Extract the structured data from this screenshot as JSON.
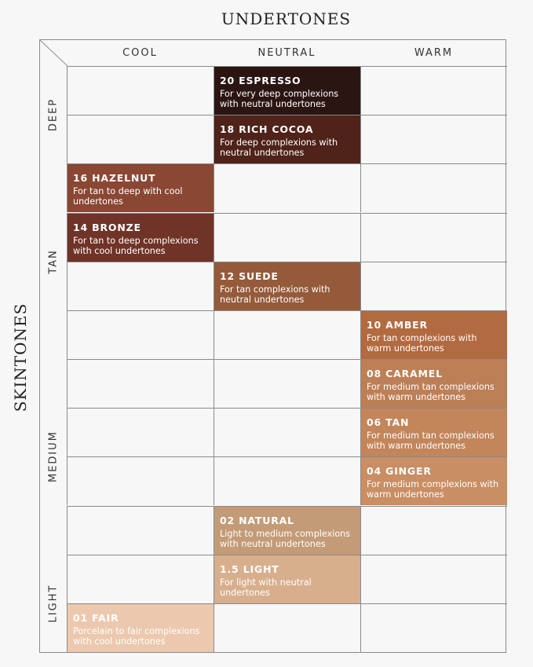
{
  "title": "UNDERTONES",
  "side_title": "SKINTONES",
  "columns": [
    {
      "key": "cool",
      "label": "COOL"
    },
    {
      "key": "neutral",
      "label": "NEUTRAL"
    },
    {
      "key": "warm",
      "label": "WARM"
    }
  ],
  "groups": [
    {
      "label": "DEEP",
      "rows": [
        1,
        2
      ]
    },
    {
      "label": "TAN",
      "rows": [
        3,
        4,
        5,
        6
      ]
    },
    {
      "label": "MEDIUM",
      "rows": [
        7,
        8,
        9,
        10
      ]
    },
    {
      "label": "LIGHT",
      "rows": [
        11,
        12
      ]
    }
  ],
  "rows": [
    {
      "neutral": {
        "name": "20 ESPRESSO",
        "desc": "For very deep complexions with neutral undertones",
        "color": "#2b1512"
      }
    },
    {
      "neutral": {
        "name": "18 RICH COCOA",
        "desc": "For deep complexions with neutral undertones",
        "color": "#4f2319"
      }
    },
    {
      "cool": {
        "name": "16 HAZELNUT",
        "desc": "For tan to deep with cool undertones",
        "color": "#8a4733"
      }
    },
    {
      "cool": {
        "name": "14 BRONZE",
        "desc": "For tan to deep complexions with cool undertones",
        "color": "#6f3327"
      }
    },
    {
      "neutral": {
        "name": "12 SUEDE",
        "desc": "For tan complexions with neutral undertones",
        "color": "#955a3a"
      }
    },
    {
      "warm": {
        "name": "10 AMBER",
        "desc": "For tan complexions with warm undertones",
        "color": "#b26a40"
      }
    },
    {
      "warm": {
        "name": "08 CARAMEL",
        "desc": "For medium tan complexions with warm undertones",
        "color": "#bd7f56"
      }
    },
    {
      "warm": {
        "name": "06 TAN",
        "desc": "For medium tan complexions with warm undertones",
        "color": "#c3855a"
      }
    },
    {
      "warm": {
        "name": "04 GINGER",
        "desc": "For medium complexions with warm undertones",
        "color": "#c98e63"
      }
    },
    {
      "neutral": {
        "name": "02 NATURAL",
        "desc": "Light to medium complexions with neutral undertones",
        "color": "#c39b77"
      }
    },
    {
      "neutral": {
        "name": "1.5 LIGHT",
        "desc": "For light with neutral undertones",
        "color": "#d8af8d"
      }
    },
    {
      "cool": {
        "name": "01 FAIR",
        "desc": "Porcelain to fair complexions with cool undertones",
        "color": "#ecc9ae"
      }
    }
  ]
}
